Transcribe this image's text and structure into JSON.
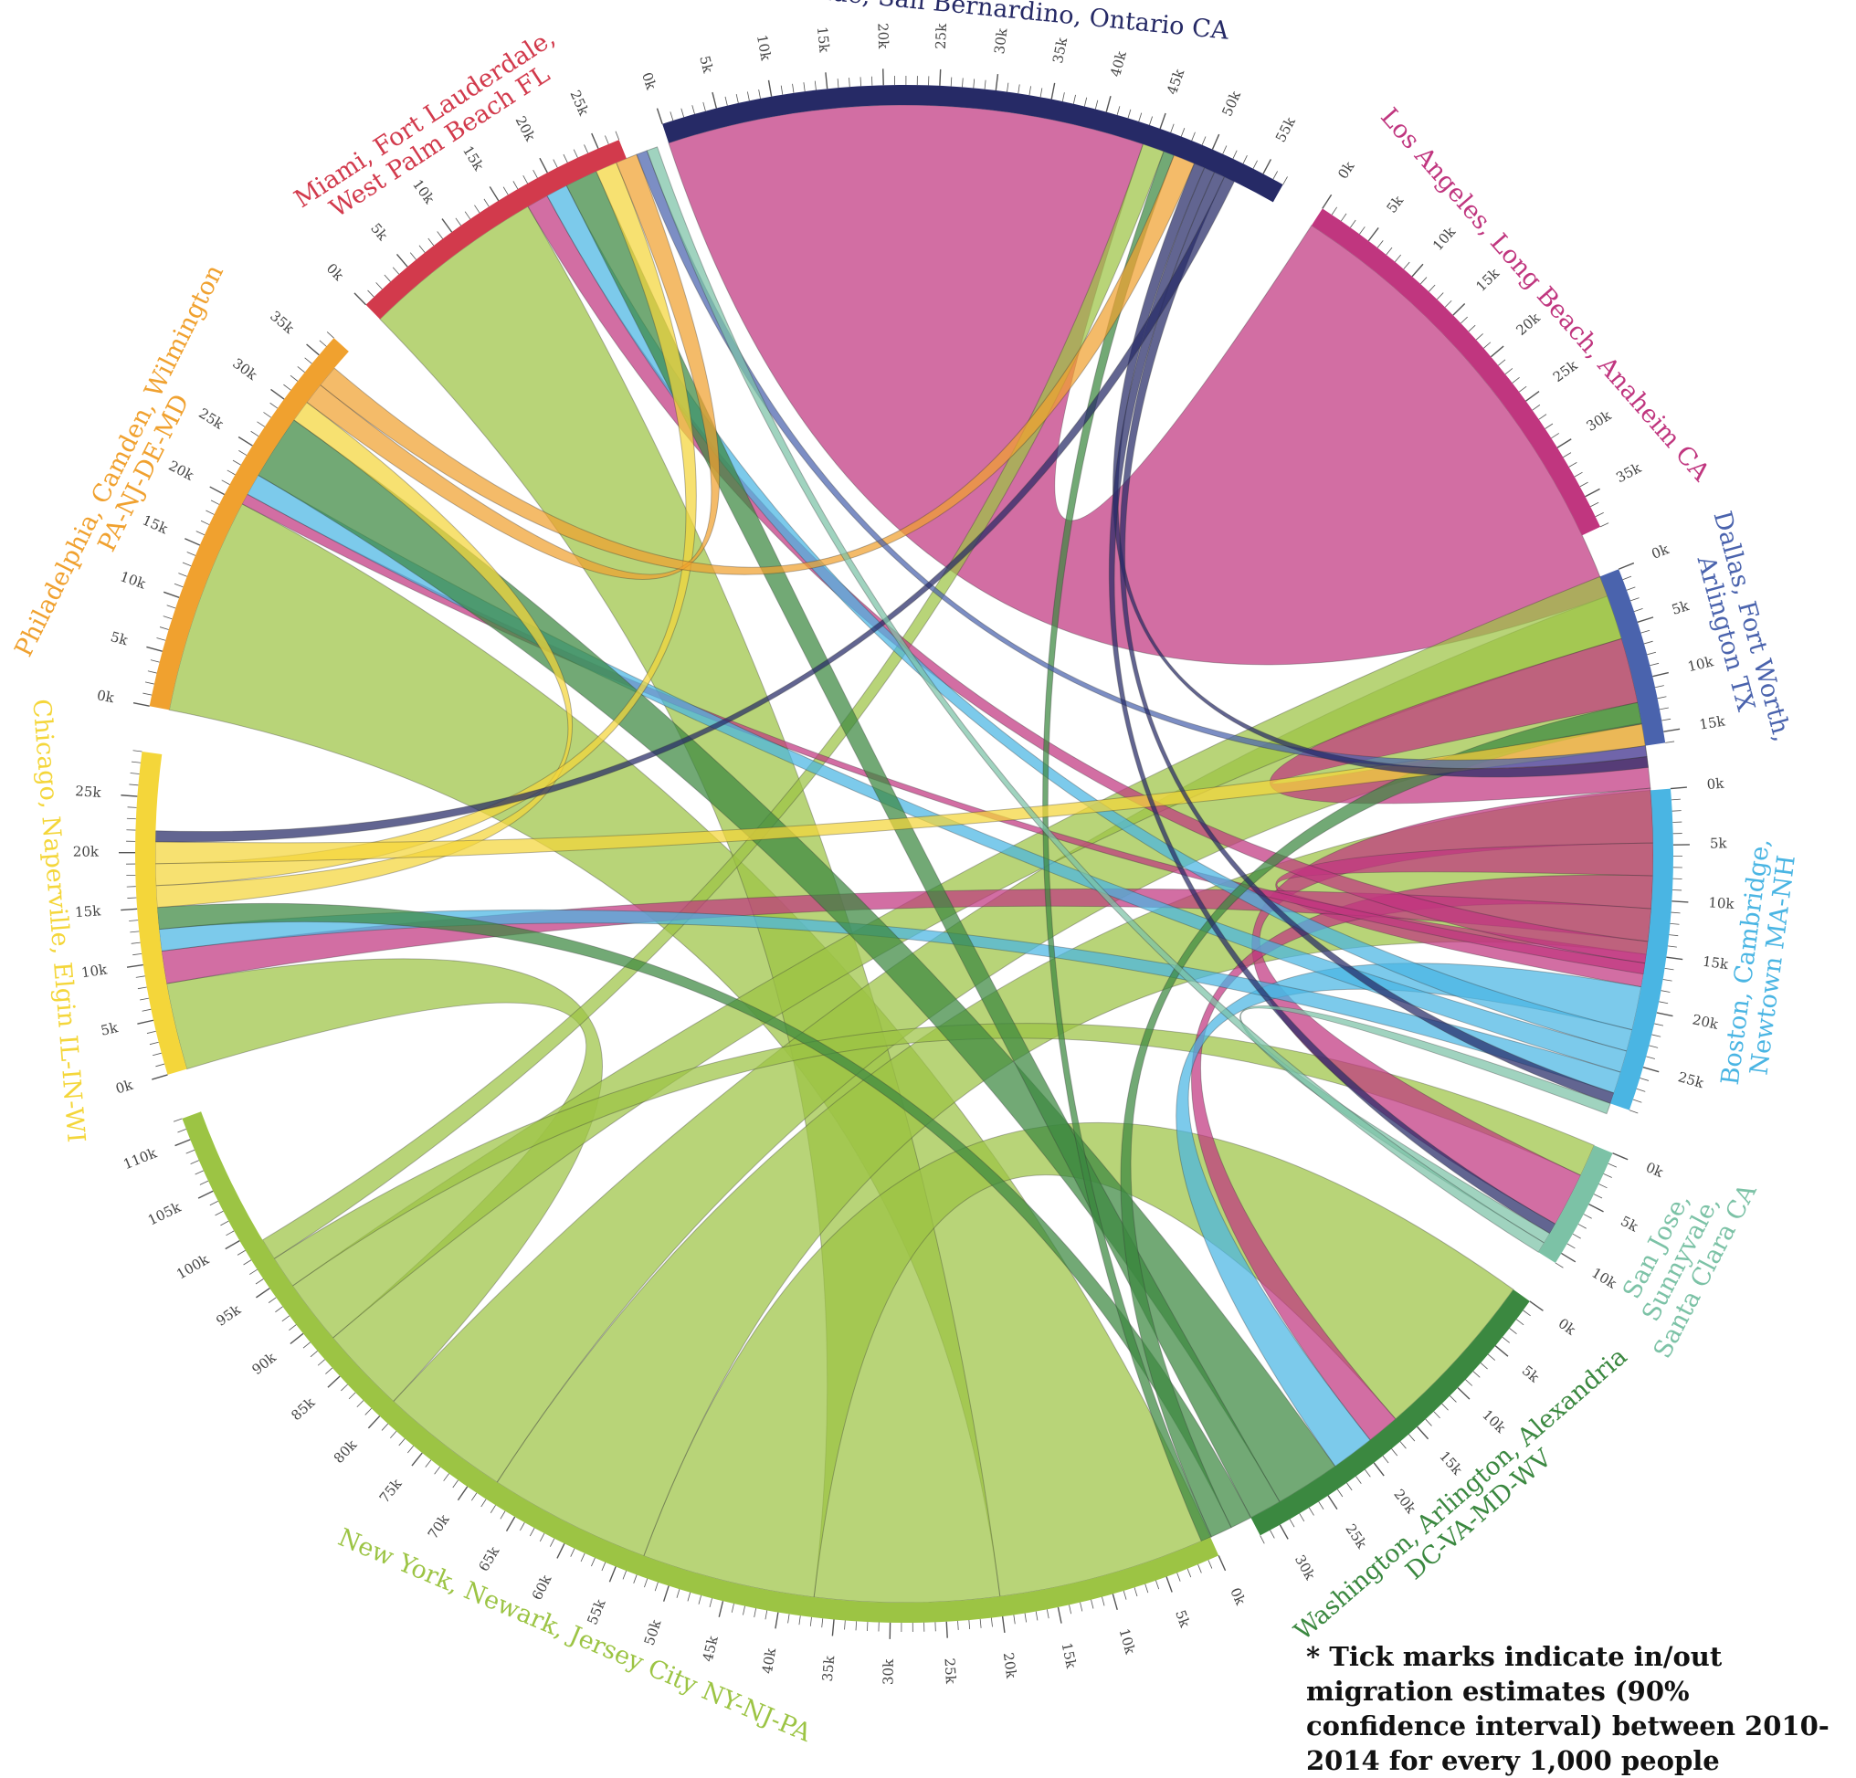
{
  "footnote": "* Tick marks indicate in/out migration estimates (90% confidence interval) between 2010-2014 for every 1,000 people",
  "chart_data": {
    "type": "chord",
    "tick_step": 5000,
    "minor_tick_step": 1000,
    "regions": [
      {
        "id": "riverside",
        "label": [
          "Riverside, San Bernardino, Ontario CA"
        ],
        "color": "#262a66",
        "total": 57000
      },
      {
        "id": "la",
        "label": [
          "Los Angeles, Long Beach, Anaheim CA"
        ],
        "color": "#c0367f",
        "total": 38000
      },
      {
        "id": "dallas",
        "label": [
          "Dallas, Fort Worth,",
          "Arlington TX"
        ],
        "color": "#4a63ad",
        "total": 16000
      },
      {
        "id": "boston",
        "label": [
          "Boston, Cambridge,",
          "Newtown MA-NH"
        ],
        "color": "#4ab5e3",
        "total": 29000
      },
      {
        "id": "sanjose",
        "label": [
          "San Jose,",
          "Sunnyvale,",
          "Santa Clara CA"
        ],
        "color": "#7cc2a6",
        "total": 11000
      },
      {
        "id": "washington",
        "label": [
          "Washington, Arlington, Alexandria",
          "DC-VA-MD-WV"
        ],
        "color": "#3b8840",
        "total": 32000
      },
      {
        "id": "newyork",
        "label": [
          "New York, Newark, Jersey City NY-NJ-PA"
        ],
        "color": "#9cc444",
        "total": 112000
      },
      {
        "id": "chicago",
        "label": [
          "Chicago, Naperville, Elgin IL-IN-WI"
        ],
        "color": "#f4d63a",
        "total": 29000
      },
      {
        "id": "philadelphia",
        "label": [
          "Philadelphia, Camden, Wilmington",
          "PA-NJ-DE-MD"
        ],
        "color": "#f0a12f",
        "total": 37000
      },
      {
        "id": "miami",
        "label": [
          "Miami, Fort Lauderdale,",
          "West Palm Beach FL"
        ],
        "color": "#d23a4c",
        "total": 27000
      }
    ],
    "flows": [
      {
        "source": "la",
        "target": "riverside",
        "value": 44000
      },
      {
        "source": "newyork",
        "target": "philadelphia",
        "value": 20000
      },
      {
        "source": "newyork",
        "target": "miami",
        "value": 17000
      },
      {
        "source": "newyork",
        "target": "washington",
        "value": 16000
      },
      {
        "source": "newyork",
        "target": "boston",
        "value": 15000
      },
      {
        "source": "newyork",
        "target": "la",
        "value": 12000
      },
      {
        "source": "newyork",
        "target": "chicago",
        "value": 8000
      },
      {
        "source": "newyork",
        "target": "dallas",
        "value": 6000
      },
      {
        "source": "newyork",
        "target": "sanjose",
        "value": 3000
      },
      {
        "source": "newyork",
        "target": "riverside",
        "value": 2000
      },
      {
        "source": "la",
        "target": "dallas",
        "value": 6000
      },
      {
        "source": "la",
        "target": "sanjose",
        "value": 5000
      },
      {
        "source": "la",
        "target": "boston",
        "value": 3000
      },
      {
        "source": "la",
        "target": "washington",
        "value": 3000
      },
      {
        "source": "la",
        "target": "chicago",
        "value": 3000
      },
      {
        "source": "la",
        "target": "miami",
        "value": 2000
      },
      {
        "source": "la",
        "target": "philadelphia",
        "value": 1000
      },
      {
        "source": "boston",
        "target": "washington",
        "value": 4000
      },
      {
        "source": "boston",
        "target": "miami",
        "value": 2000
      },
      {
        "source": "boston",
        "target": "philadelphia",
        "value": 2000
      },
      {
        "source": "boston",
        "target": "chicago",
        "value": 2000
      },
      {
        "source": "washington",
        "target": "philadelphia",
        "value": 6000
      },
      {
        "source": "washington",
        "target": "miami",
        "value": 3000
      },
      {
        "source": "washington",
        "target": "chicago",
        "value": 2000
      },
      {
        "source": "washington",
        "target": "dallas",
        "value": 2000
      },
      {
        "source": "washington",
        "target": "riverside",
        "value": 1000
      },
      {
        "source": "chicago",
        "target": "philadelphia",
        "value": 2000
      },
      {
        "source": "chicago",
        "target": "miami",
        "value": 2000
      },
      {
        "source": "chicago",
        "target": "dallas",
        "value": 2000
      },
      {
        "source": "philadelphia",
        "target": "miami",
        "value": 2000
      },
      {
        "source": "philadelphia",
        "target": "riverside",
        "value": 2000
      },
      {
        "source": "dallas",
        "target": "miami",
        "value": 1000
      },
      {
        "source": "riverside",
        "target": "dallas",
        "value": 1000
      },
      {
        "source": "riverside",
        "target": "sanjose",
        "value": 1000
      },
      {
        "source": "riverside",
        "target": "boston",
        "value": 1000
      },
      {
        "source": "riverside",
        "target": "chicago",
        "value": 1000
      },
      {
        "source": "sanjose",
        "target": "boston",
        "value": 1000
      },
      {
        "source": "sanjose",
        "target": "miami",
        "value": 1000
      }
    ]
  }
}
